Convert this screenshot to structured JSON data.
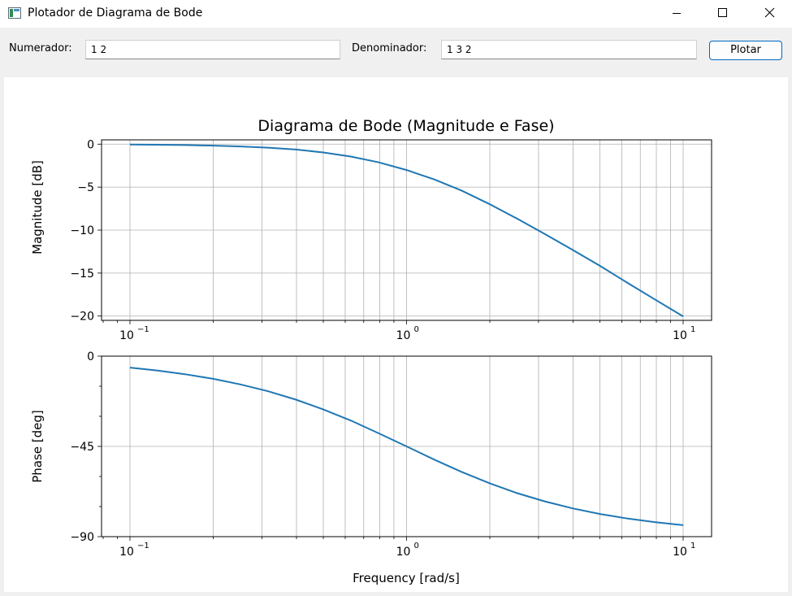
{
  "window": {
    "title": "Plotador de Diagrama de Bode"
  },
  "icons": {
    "app": "window-app-icon",
    "minimize": "minimize-icon",
    "maximize": "maximize-icon",
    "close": "close-icon"
  },
  "form": {
    "numerator_label": "Numerador:",
    "numerator_value": "1 2",
    "denominator_label": "Denominador:",
    "denominator_value": "1 3 2",
    "plot_button": "Plotar"
  },
  "chart_data": [
    {
      "type": "line",
      "title": "Diagrama de Bode (Magnitude e Fase)",
      "ylabel": "Magnitude [dB]",
      "xlabel": "",
      "xscale": "log",
      "xlim": [
        0.1,
        10
      ],
      "ylim": [
        -20.5,
        0.5
      ],
      "yticks": [
        0,
        -5,
        -10,
        -15,
        -20
      ],
      "ytick_labels": [
        "0",
        "−5",
        "−10",
        "−15",
        "−20"
      ],
      "xtick_labels": [
        "10",
        "10",
        "10"
      ],
      "xtick_exponents": [
        "−1",
        "0",
        "1"
      ],
      "grid": true,
      "color": "#1f77b4",
      "series": [
        {
          "x": [
            0.1,
            0.126,
            0.158,
            0.2,
            0.251,
            0.316,
            0.398,
            0.5,
            0.631,
            0.794,
            1,
            1.26,
            1.58,
            2,
            2.51,
            3.16,
            3.98,
            5,
            6.31,
            7.94,
            10
          ],
          "y": [
            -0.04,
            -0.07,
            -0.11,
            -0.17,
            -0.27,
            -0.41,
            -0.63,
            -0.97,
            -1.45,
            -2.12,
            -3.01,
            -4.11,
            -5.39,
            -6.99,
            -8.67,
            -10.45,
            -12.3,
            -14.15,
            -16.16,
            -18.11,
            -20.04
          ]
        }
      ]
    },
    {
      "type": "line",
      "title": "",
      "ylabel": "Phase [deg]",
      "xlabel": "Frequency [rad/s]",
      "xscale": "log",
      "xlim": [
        0.1,
        10
      ],
      "ylim": [
        -90,
        0
      ],
      "yticks": [
        0,
        -45,
        -90
      ],
      "ytick_labels": [
        "0",
        "−45",
        "−90"
      ],
      "xtick_labels": [
        "10",
        "10",
        "10"
      ],
      "xtick_exponents": [
        "−1",
        "0",
        "1"
      ],
      "grid": true,
      "color": "#1f77b4",
      "series": [
        {
          "x": [
            0.1,
            0.126,
            0.158,
            0.2,
            0.251,
            0.316,
            0.398,
            0.5,
            0.631,
            0.794,
            1,
            1.26,
            1.58,
            2,
            2.51,
            3.16,
            3.98,
            5,
            6.31,
            7.94,
            10
          ],
          "y": [
            -5.7,
            -7.2,
            -9.0,
            -11.3,
            -14.1,
            -17.5,
            -21.7,
            -26.6,
            -32.2,
            -38.5,
            -45.0,
            -51.6,
            -57.7,
            -63.4,
            -68.3,
            -72.4,
            -75.9,
            -78.7,
            -81.0,
            -82.8,
            -84.3
          ]
        }
      ]
    }
  ]
}
